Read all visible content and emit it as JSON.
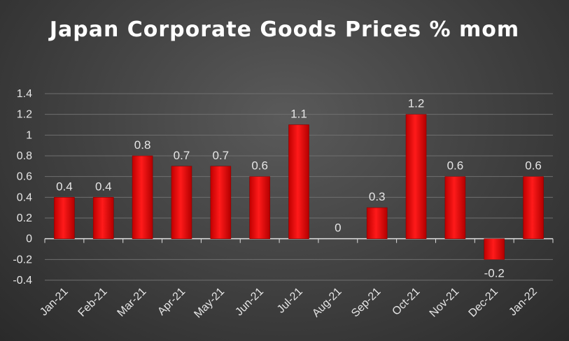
{
  "chart_data": {
    "type": "bar",
    "title": "Japan Corporate Goods Prices % mom",
    "categories": [
      "Jan-21",
      "Feb-21",
      "Mar-21",
      "Apr-21",
      "May-21",
      "Jun-21",
      "Jul-21",
      "Aug-21",
      "Sep-21",
      "Oct-21",
      "Nov-21",
      "Dec-21",
      "Jan-22"
    ],
    "series": [
      {
        "values": [
          0.4,
          0.4,
          0.8,
          0.7,
          0.7,
          0.6,
          1.1,
          0,
          0.3,
          1.2,
          0.6,
          -0.2,
          0.6
        ]
      }
    ],
    "data_labels": [
      "0.4",
      "0.4",
      "0.8",
      "0.7",
      "0.7",
      "0.6",
      "1.1",
      "0",
      "0.3",
      "1.2",
      "0.6",
      "-0.2",
      "0.6"
    ],
    "y_ticks": [
      "1.4",
      "1.2",
      "1",
      "0.8",
      "0.6",
      "0.4",
      "0.2",
      "0",
      "-0.2",
      "-0.4"
    ],
    "ylim": [
      -0.4,
      1.4
    ],
    "grid": true,
    "legend": "none",
    "colors": {
      "bar": "#ff0000",
      "background": "#444444",
      "text": "#e6e6e6"
    }
  }
}
